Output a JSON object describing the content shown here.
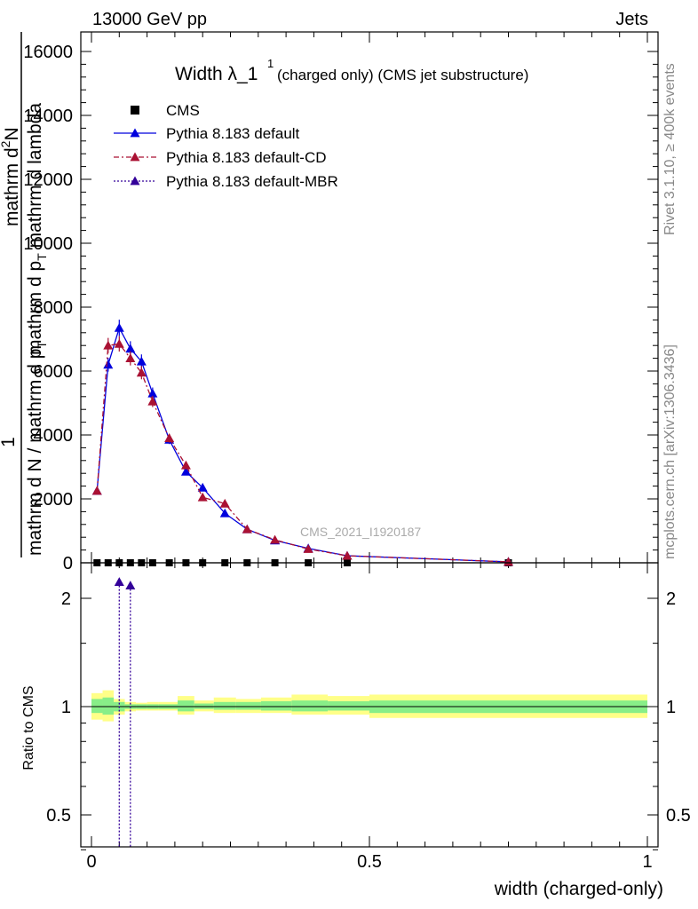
{
  "header": {
    "left": "13000 GeV pp",
    "right": "Jets"
  },
  "side_labels": {
    "top": "Rivet 3.1.10, ≥ 400k events",
    "bottom": "mcplots.cern.ch [arXiv:1306.3436]"
  },
  "watermark": "CMS_2021_I1920187",
  "title": {
    "main": "Width λ_1",
    "sup": "1",
    "sub": "(charged only) (CMS jet substructure)"
  },
  "ylabel": {
    "one": "1",
    "denominator": "mathrm d N / mathrm d p",
    "denominator_sub": "T",
    "numerator": "mathrm d",
    "numerator_sup": "2",
    "numerator_rest": "N",
    "frac2_den": "mathrm d p",
    "frac2_den_sub": "T",
    "frac2_den_rest": " mathrm d lambda"
  },
  "ratio_ylabel": "Ratio to CMS",
  "xlabel": "width (charged-only)",
  "colors": {
    "cms": "#000000",
    "default": "#0000dd",
    "default_cd": "#aa1133",
    "default_mbr": "#330099",
    "band_outer": "#ffff88",
    "band_inner": "#88ee88"
  },
  "chart_data": {
    "type": "line",
    "title": "Width λ_1^1 (charged only) (CMS jet substructure)",
    "xlim": [
      0,
      1
    ],
    "ylim": [
      0,
      16000
    ],
    "ratio_ylim": [
      0.36,
      2.3
    ],
    "ratio_log": true,
    "x_ticks": [
      "0",
      "0.5",
      "1"
    ],
    "y_ticks": [
      "0",
      "2000",
      "4000",
      "6000",
      "8000",
      "10000",
      "12000",
      "14000",
      "16000"
    ],
    "ratio_ticks": [
      "0.5",
      "1",
      "2"
    ],
    "series": [
      {
        "name": "CMS",
        "style": "markers",
        "x": [
          0.01,
          0.03,
          0.05,
          0.07,
          0.09,
          0.11,
          0.14,
          0.17,
          0.2,
          0.24,
          0.28,
          0.33,
          0.39,
          0.46,
          0.75
        ],
        "y": [
          0,
          0,
          0,
          0,
          0,
          0,
          0,
          0,
          0,
          0,
          0,
          0,
          0,
          0,
          0
        ]
      },
      {
        "name": "Pythia 8.183 default",
        "style": "solid",
        "x": [
          0.01,
          0.03,
          0.05,
          0.07,
          0.09,
          0.11,
          0.14,
          0.17,
          0.2,
          0.24,
          0.28,
          0.33,
          0.39,
          0.46,
          0.75
        ],
        "y": [
          2250,
          6200,
          7350,
          6700,
          6300,
          5300,
          3850,
          2850,
          2350,
          1550,
          1050,
          700,
          450,
          220,
          30
        ]
      },
      {
        "name": "Pythia 8.183 default-CD",
        "style": "dashdot",
        "x": [
          0.01,
          0.03,
          0.05,
          0.07,
          0.09,
          0.11,
          0.14,
          0.17,
          0.2,
          0.24,
          0.28,
          0.33,
          0.39,
          0.46,
          0.75
        ],
        "y": [
          2250,
          6800,
          6850,
          6400,
          5950,
          5050,
          3900,
          3050,
          2050,
          1850,
          1050,
          720,
          430,
          220,
          30
        ]
      },
      {
        "name": "Pythia 8.183 default-MBR",
        "style": "dotted",
        "ratio_x": [
          0.05,
          0.07
        ],
        "ratio_y": [
          2.22,
          2.17
        ]
      }
    ],
    "ratio_bands": [
      {
        "x0": 0.0,
        "x1": 0.02,
        "outer": [
          0.92,
          1.09
        ],
        "inner": [
          0.96,
          1.05
        ]
      },
      {
        "x0": 0.02,
        "x1": 0.04,
        "outer": [
          0.91,
          1.11
        ],
        "inner": [
          0.95,
          1.06
        ]
      },
      {
        "x0": 0.04,
        "x1": 0.06,
        "outer": [
          0.95,
          1.05
        ],
        "inner": [
          0.97,
          1.03
        ]
      },
      {
        "x0": 0.06,
        "x1": 0.08,
        "outer": [
          0.97,
          1.03
        ],
        "inner": [
          0.985,
          1.015
        ]
      },
      {
        "x0": 0.08,
        "x1": 0.1,
        "outer": [
          0.975,
          1.025
        ],
        "inner": [
          0.985,
          1.015
        ]
      },
      {
        "x0": 0.1,
        "x1": 0.12,
        "outer": [
          0.975,
          1.03
        ],
        "inner": [
          0.985,
          1.015
        ]
      },
      {
        "x0": 0.12,
        "x1": 0.155,
        "outer": [
          0.975,
          1.03
        ],
        "inner": [
          0.985,
          1.015
        ]
      },
      {
        "x0": 0.155,
        "x1": 0.185,
        "outer": [
          0.95,
          1.07
        ],
        "inner": [
          0.97,
          1.04
        ]
      },
      {
        "x0": 0.185,
        "x1": 0.22,
        "outer": [
          0.97,
          1.04
        ],
        "inner": [
          0.985,
          1.02
        ]
      },
      {
        "x0": 0.22,
        "x1": 0.26,
        "outer": [
          0.96,
          1.06
        ],
        "inner": [
          0.98,
          1.03
        ]
      },
      {
        "x0": 0.26,
        "x1": 0.305,
        "outer": [
          0.96,
          1.05
        ],
        "inner": [
          0.98,
          1.03
        ]
      },
      {
        "x0": 0.305,
        "x1": 0.36,
        "outer": [
          0.96,
          1.06
        ],
        "inner": [
          0.975,
          1.035
        ]
      },
      {
        "x0": 0.36,
        "x1": 0.425,
        "outer": [
          0.95,
          1.08
        ],
        "inner": [
          0.97,
          1.04
        ]
      },
      {
        "x0": 0.425,
        "x1": 0.5,
        "outer": [
          0.95,
          1.07
        ],
        "inner": [
          0.975,
          1.035
        ]
      },
      {
        "x0": 0.5,
        "x1": 1.0,
        "outer": [
          0.93,
          1.08
        ],
        "inner": [
          0.96,
          1.04
        ]
      }
    ]
  }
}
